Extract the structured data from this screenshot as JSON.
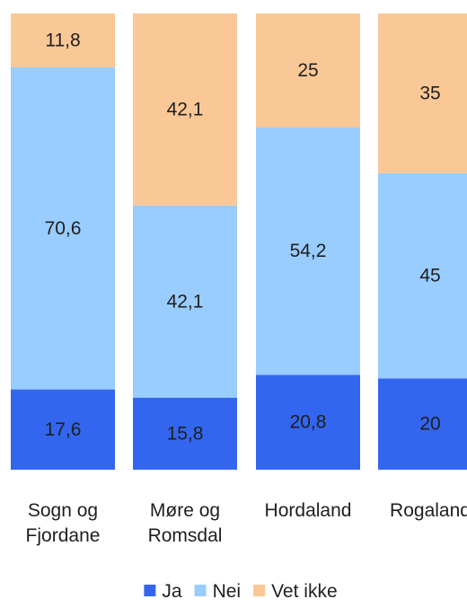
{
  "chart_data": {
    "type": "bar",
    "stacked": true,
    "categories": [
      [
        "Sogn og",
        "Fjordane"
      ],
      [
        "Møre og",
        "Romsdal"
      ],
      [
        "Hordaland"
      ],
      [
        "Rogaland"
      ]
    ],
    "series": [
      {
        "name": "Ja",
        "color": "#3366ee",
        "values": [
          17.6,
          15.8,
          20.8,
          20
        ],
        "labels": [
          "17,6",
          "15,8",
          "20,8",
          "20"
        ]
      },
      {
        "name": "Nei",
        "color": "#99ccff",
        "values": [
          70.6,
          42.1,
          54.2,
          45
        ],
        "labels": [
          "70,6",
          "42,1",
          "54,2",
          "45"
        ]
      },
      {
        "name": "Vet ikke",
        "color": "#fac896",
        "values": [
          11.8,
          42.1,
          25,
          35
        ],
        "labels": [
          "11,8",
          "42,1",
          "25",
          "35"
        ]
      }
    ],
    "ylim": [
      0,
      100
    ],
    "grid": false,
    "legend_position": "bottom"
  }
}
